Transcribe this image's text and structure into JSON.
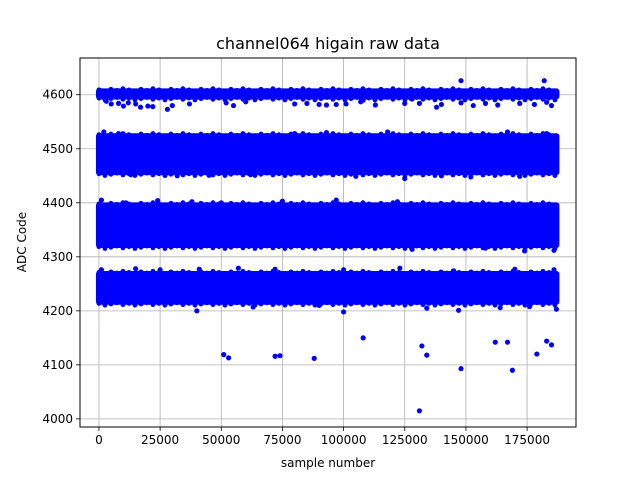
{
  "chart_data": {
    "type": "scatter",
    "title": "channel064 higain raw data",
    "xlabel": "sample number",
    "ylabel": "ADC Code",
    "xlim": [
      -7750,
      195000
    ],
    "ylim": [
      3985,
      4668
    ],
    "xticks": [
      0,
      25000,
      50000,
      75000,
      100000,
      125000,
      150000,
      175000
    ],
    "xtick_labels": [
      "0",
      "25000",
      "50000",
      "75000",
      "100000",
      "125000",
      "150000",
      "175000"
    ],
    "yticks": [
      4000,
      4100,
      4200,
      4300,
      4400,
      4500,
      4600
    ],
    "ytick_labels": [
      "4000",
      "4100",
      "4200",
      "4300",
      "4400",
      "4500",
      "4600"
    ],
    "grid": true,
    "marker_color": "#0000ff",
    "bands": [
      {
        "x": [
          0,
          187000
        ],
        "y": [
          4595,
          4608
        ]
      },
      {
        "x": [
          0,
          187000
        ],
        "y": [
          4455,
          4525
        ]
      },
      {
        "x": [
          0,
          187000
        ],
        "y": [
          4320,
          4397
        ]
      },
      {
        "x": [
          0,
          187000
        ],
        "y": [
          4215,
          4270
        ]
      }
    ],
    "x": [
      3000,
      5000,
      8000,
      10000,
      12000,
      15000,
      17000,
      20000,
      22000,
      28000,
      30000,
      37000,
      52000,
      55000,
      60000,
      80000,
      85000,
      90000,
      93000,
      97000,
      101000,
      107000,
      113000,
      125000,
      138000,
      140000,
      148000,
      153000,
      158000,
      163000,
      172000,
      178000,
      185000,
      183000,
      128000,
      131000,
      148000,
      182000,
      108000,
      2000,
      8000,
      13000,
      27000,
      32000,
      45000,
      62000,
      80000,
      93000,
      105000,
      118000,
      125000,
      140000,
      152000,
      167000,
      172000,
      183000,
      1000,
      11000,
      24000,
      38000,
      50000,
      75000,
      97000,
      122000,
      128000,
      158000,
      174000,
      186000,
      1000,
      15000,
      25000,
      41000,
      57000,
      72000,
      100000,
      123000,
      145000,
      170000,
      186000,
      40000,
      63000,
      90000,
      100000,
      134000,
      147000,
      164000,
      176000,
      187000,
      51000,
      53000,
      72000,
      74000,
      88000,
      108000,
      132000,
      134000,
      148000,
      162000,
      167000,
      169000,
      179000,
      183000,
      185000,
      131000
    ],
    "y": [
      4588,
      4583,
      4584,
      4579,
      4585,
      4583,
      4577,
      4579,
      4578,
      4573,
      4580,
      4583,
      4585,
      4580,
      4587,
      4583,
      4584,
      4582,
      4581,
      4582,
      4583,
      4587,
      4581,
      4584,
      4577,
      4582,
      4585,
      4580,
      4584,
      4581,
      4584,
      4582,
      4580,
      4586,
      4592,
      4584,
      4626,
      4626,
      4590,
      4531,
      4528,
      4452,
      4451,
      4450,
      4451,
      4452,
      4528,
      4530,
      4449,
      4531,
      4445,
      4450,
      4448,
      4531,
      4449,
      4528,
      4405,
      4400,
      4404,
      4402,
      4400,
      4403,
      4405,
      4402,
      4314,
      4316,
      4311,
      4312,
      4276,
      4278,
      4276,
      4277,
      4279,
      4277,
      4276,
      4279,
      4274,
      4277,
      4276,
      4200,
      4207,
      4210,
      4198,
      4205,
      4201,
      4206,
      4208,
      4203,
      4119,
      4113,
      4116,
      4117,
      4112,
      4150,
      4135,
      4118,
      4093,
      4142,
      4142,
      4090,
      4120,
      4144,
      4137,
      4015
    ]
  }
}
